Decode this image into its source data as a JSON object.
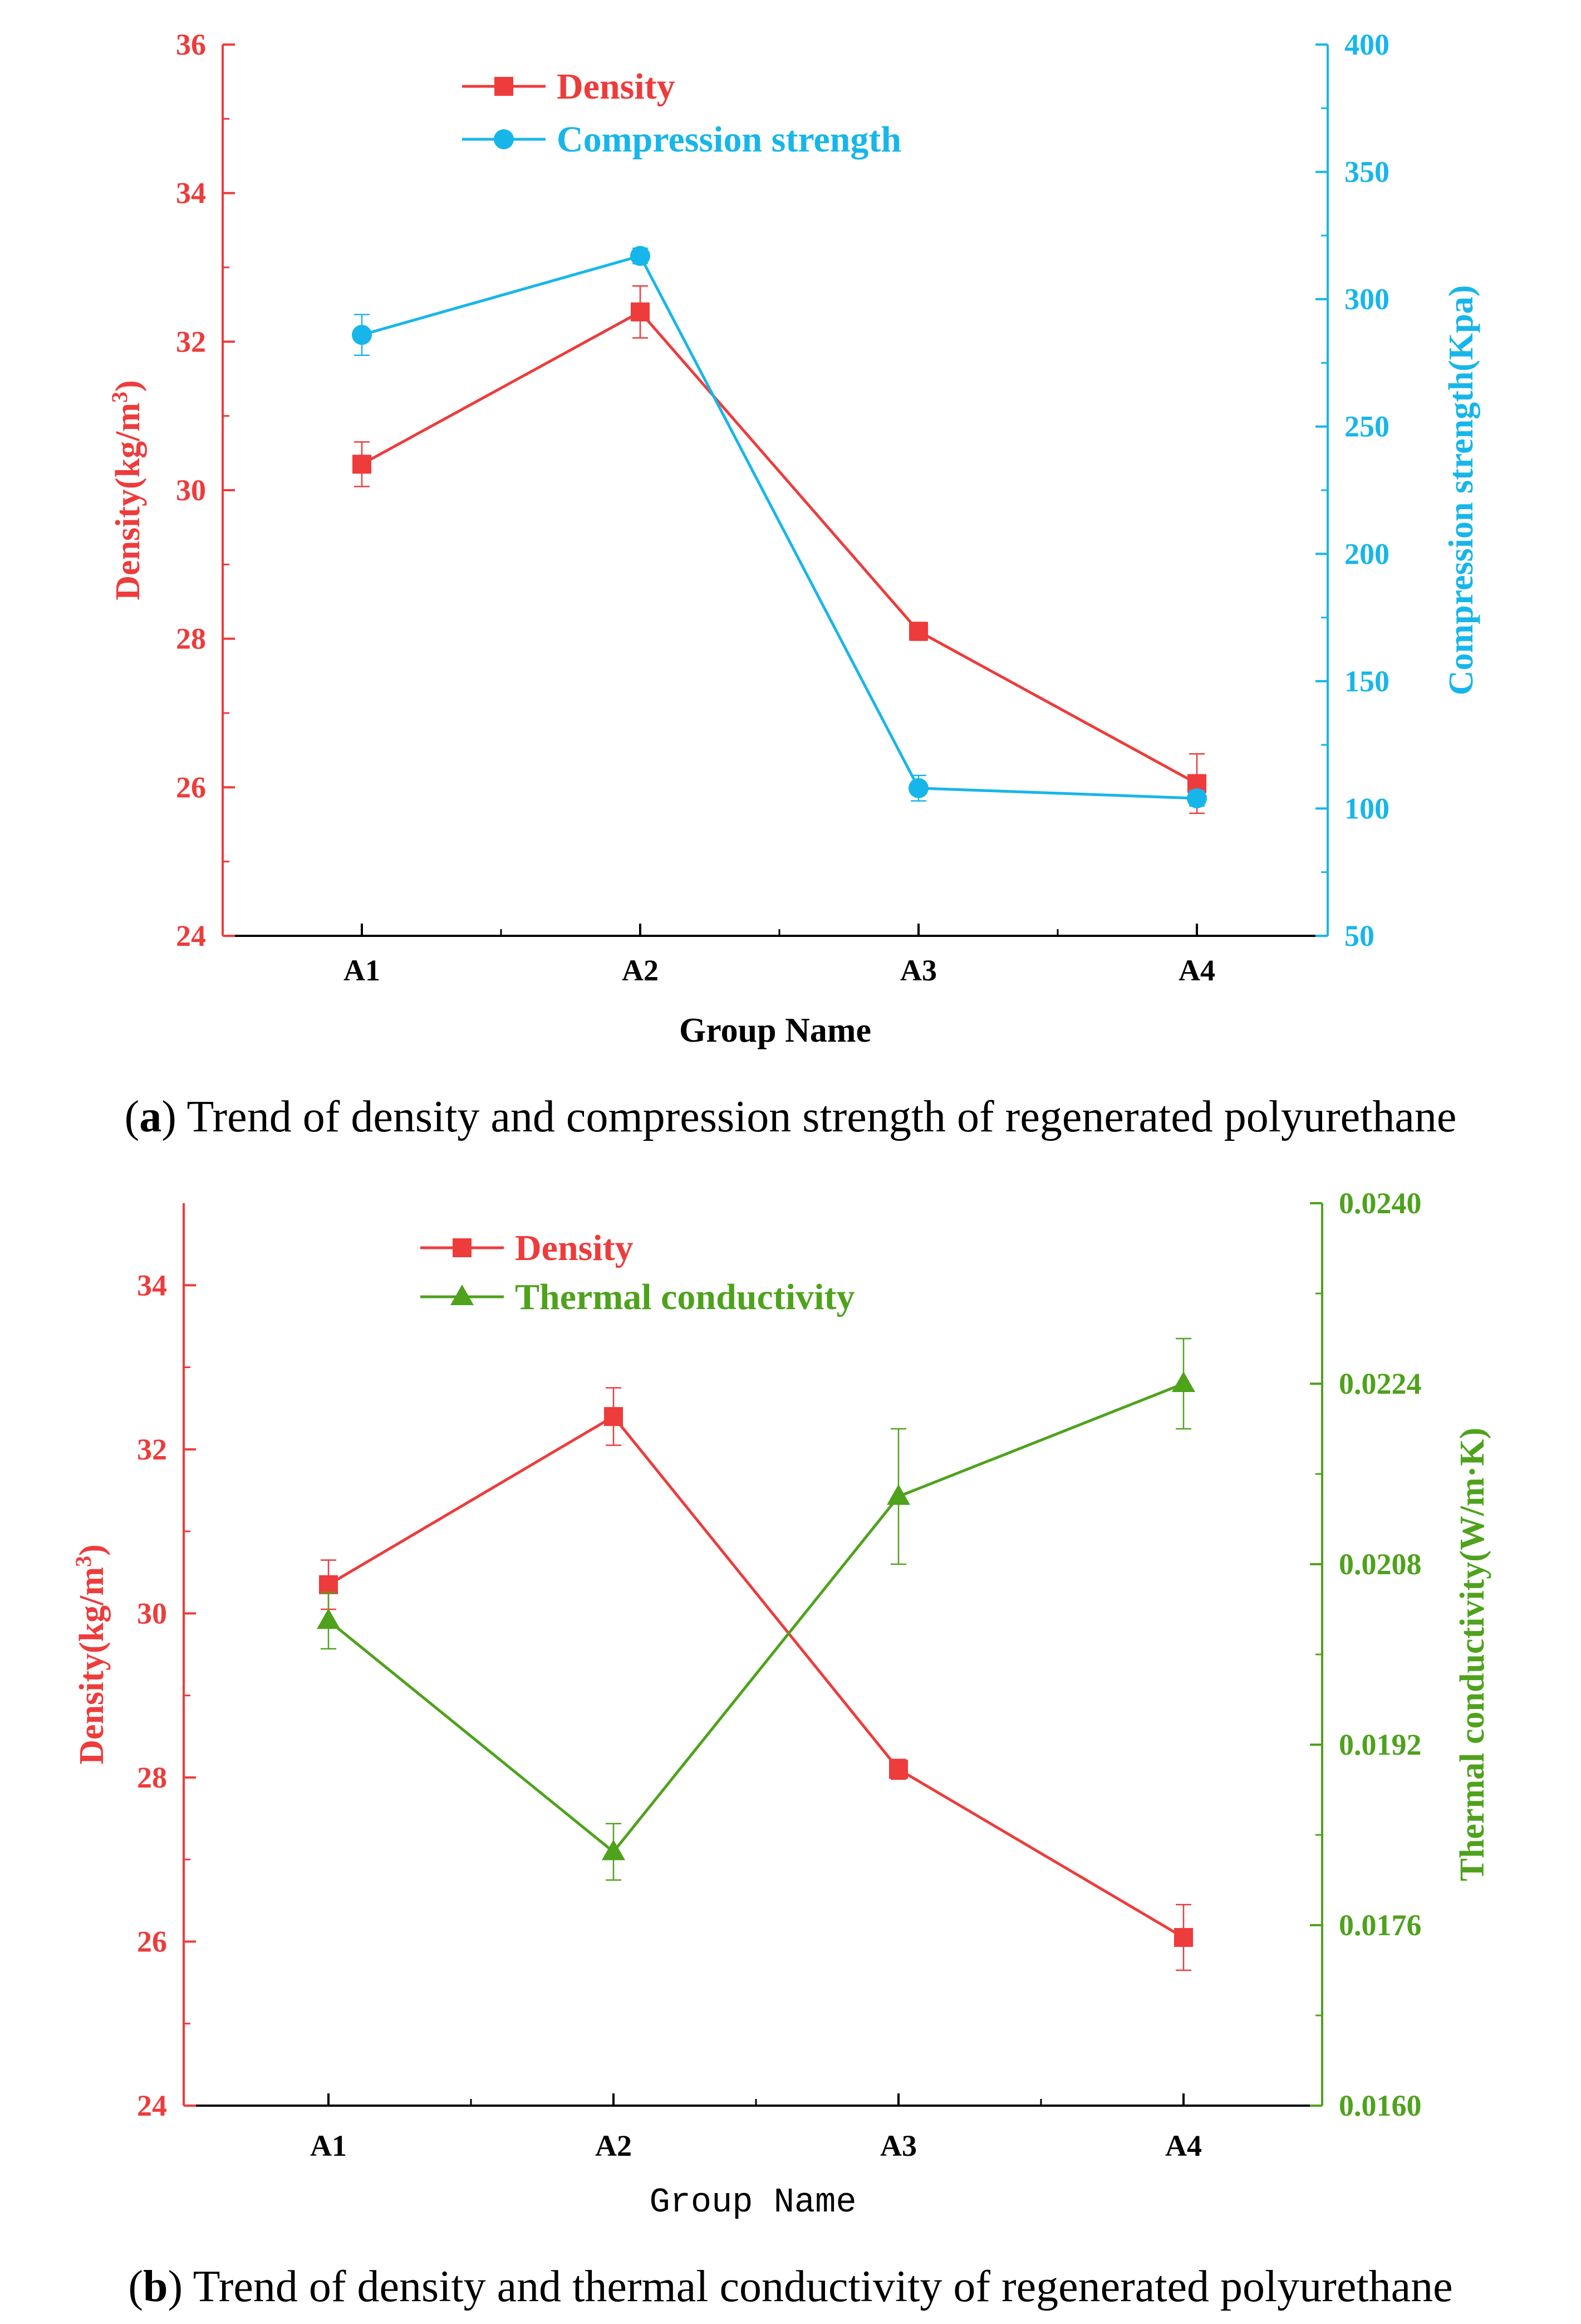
{
  "chart_data": [
    {
      "type": "line",
      "panel": "a",
      "caption_label": "a",
      "caption_text": "Trend of density and compression strength of regenerated polyurethane",
      "categories": [
        "A1",
        "A2",
        "A3",
        "A4"
      ],
      "xlabel": "Group Name",
      "y_left": {
        "label": "Density(kg/m",
        "label_sup": "3",
        "label_end": ")",
        "range": [
          24,
          36
        ],
        "ticks": [
          "24",
          "26",
          "28",
          "30",
          "32",
          "34",
          "36"
        ],
        "tick_values": [
          24,
          26,
          28,
          30,
          32,
          34,
          36
        ],
        "color": "#EE3B3B"
      },
      "y_right": {
        "label": "Compression strength(Kpa)",
        "range": [
          50,
          400
        ],
        "ticks": [
          "50",
          "100",
          "150",
          "200",
          "250",
          "300",
          "350",
          "400"
        ],
        "tick_values": [
          50,
          100,
          150,
          200,
          250,
          300,
          350,
          400
        ],
        "color": "#17B6EA"
      },
      "series": [
        {
          "name": "Density",
          "axis": "left",
          "marker": "square",
          "color": "#EE3B3B",
          "values": [
            30.35,
            32.4,
            28.1,
            26.05
          ],
          "errors": [
            0.3,
            0.35,
            0.12,
            0.4
          ]
        },
        {
          "name": "Compression strength",
          "axis": "right",
          "marker": "circle",
          "color": "#17B6EA",
          "values": [
            286,
            317,
            108,
            104
          ],
          "errors": [
            8,
            3,
            5,
            3
          ]
        }
      ],
      "legend_position": "top"
    },
    {
      "type": "line",
      "panel": "b",
      "caption_label": "b",
      "caption_text": "Trend of density and thermal conductivity of regenerated polyurethane",
      "categories": [
        "A1",
        "A2",
        "A3",
        "A4"
      ],
      "xlabel": "Group Name",
      "y_left": {
        "label": "Density(kg/m",
        "label_sup": "3",
        "label_end": ")",
        "range": [
          24,
          35
        ],
        "ticks": [
          "24",
          "26",
          "28",
          "30",
          "32",
          "34"
        ],
        "tick_values": [
          24,
          26,
          28,
          30,
          32,
          34
        ],
        "color": "#EE3B3B"
      },
      "y_right": {
        "label": "Thermal conductivity(W/m·K)",
        "range": [
          0.016,
          0.024
        ],
        "ticks": [
          "0.0160",
          "0.0176",
          "0.0192",
          "0.0208",
          "0.0224",
          "0.0240"
        ],
        "tick_values": [
          0.016,
          0.0176,
          0.0192,
          0.0208,
          0.0224,
          0.024
        ],
        "color": "#4EA21C"
      },
      "series": [
        {
          "name": "Density",
          "axis": "left",
          "marker": "square",
          "color": "#EE3B3B",
          "values": [
            30.35,
            32.4,
            28.1,
            26.05
          ],
          "errors": [
            0.3,
            0.35,
            0.12,
            0.4
          ]
        },
        {
          "name": "Thermal conductivity",
          "axis": "right",
          "marker": "triangle",
          "color": "#4EA21C",
          "values": [
            0.0203,
            0.01825,
            0.0214,
            0.0224
          ],
          "errors": [
            0.00025,
            0.00025,
            0.0006,
            0.0004
          ]
        }
      ],
      "legend_position": "top"
    }
  ]
}
